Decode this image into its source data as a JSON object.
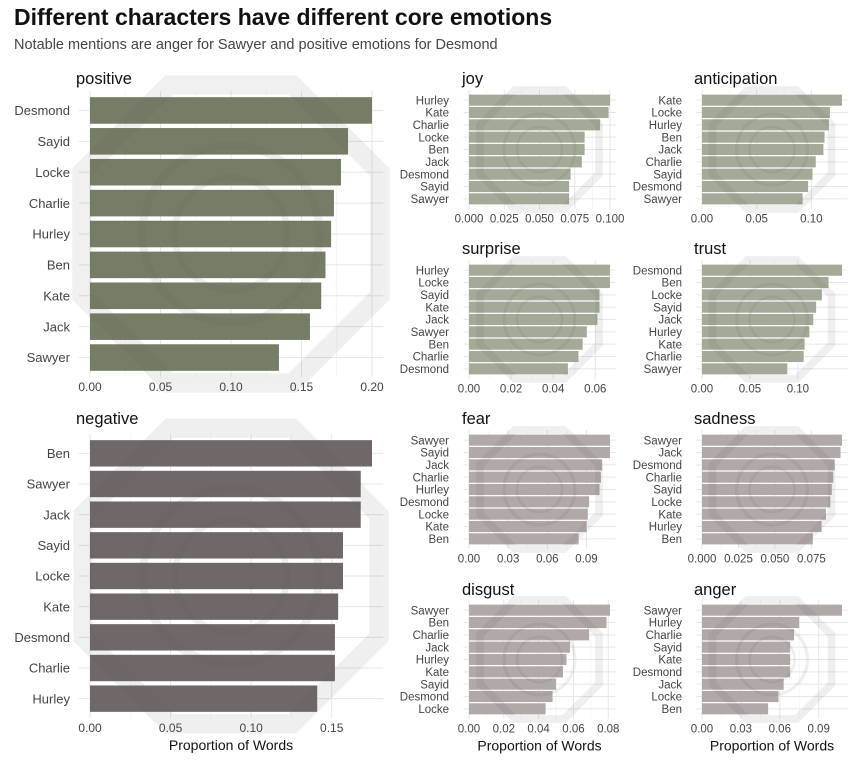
{
  "title": "Different characters have different core emotions",
  "subtitle": "Notable mentions are anger for Sawyer and positive emotions for Desmond",
  "colors": {
    "positive": "#767d67",
    "negative": "#706868",
    "positive_light": "#a4aa98",
    "negative_light": "#b1a8a8",
    "grid": "#e6e6e6",
    "text": "#444444"
  },
  "chart_data": [
    {
      "type": "bar",
      "orientation": "horizontal",
      "title": "positive",
      "xlabel": "",
      "categories": [
        "Desmond",
        "Sayid",
        "Locke",
        "Charlie",
        "Hurley",
        "Ben",
        "Kate",
        "Jack",
        "Sawyer"
      ],
      "values": [
        0.2,
        0.183,
        0.178,
        0.173,
        0.171,
        0.167,
        0.164,
        0.156,
        0.134
      ],
      "xlim": [
        0,
        0.2
      ],
      "ticks": [
        0,
        0.05,
        0.1,
        0.15,
        0.2
      ],
      "tick_labels": [
        "0.00",
        "0.05",
        "0.10",
        "0.15",
        "0.20"
      ],
      "color": "#767d67"
    },
    {
      "type": "bar",
      "orientation": "horizontal",
      "title": "negative",
      "xlabel": "Proportion of Words",
      "categories": [
        "Ben",
        "Sawyer",
        "Jack",
        "Sayid",
        "Locke",
        "Kate",
        "Desmond",
        "Charlie",
        "Hurley"
      ],
      "values": [
        0.175,
        0.168,
        0.168,
        0.157,
        0.157,
        0.154,
        0.152,
        0.152,
        0.141
      ],
      "xlim": [
        0,
        0.175
      ],
      "ticks": [
        0,
        0.05,
        0.1,
        0.15
      ],
      "tick_labels": [
        "0.00",
        "0.05",
        "0.10",
        "0.15"
      ],
      "color": "#706868"
    },
    {
      "type": "bar",
      "orientation": "horizontal",
      "title": "joy",
      "xlabel": "",
      "categories": [
        "Hurley",
        "Kate",
        "Charlie",
        "Locke",
        "Ben",
        "Jack",
        "Desmond",
        "Sayid",
        "Sawyer"
      ],
      "values": [
        0.1,
        0.099,
        0.093,
        0.082,
        0.082,
        0.08,
        0.072,
        0.071,
        0.071
      ],
      "xlim": [
        0,
        0.1
      ],
      "ticks": [
        0,
        0.025,
        0.05,
        0.075,
        0.1
      ],
      "tick_labels": [
        "0.000",
        "0.025",
        "0.050",
        "0.075",
        "0.100"
      ],
      "color": "#a4aa98"
    },
    {
      "type": "bar",
      "orientation": "horizontal",
      "title": "anticipation",
      "xlabel": "",
      "categories": [
        "Kate",
        "Locke",
        "Hurley",
        "Ben",
        "Jack",
        "Charlie",
        "Sayid",
        "Desmond",
        "Sawyer"
      ],
      "values": [
        0.128,
        0.117,
        0.116,
        0.112,
        0.111,
        0.104,
        0.101,
        0.097,
        0.092
      ],
      "xlim": [
        0,
        0.128
      ],
      "ticks": [
        0,
        0.05,
        0.1
      ],
      "tick_labels": [
        "0.00",
        "0.05",
        "0.10"
      ],
      "color": "#a4aa98"
    },
    {
      "type": "bar",
      "orientation": "horizontal",
      "title": "surprise",
      "xlabel": "",
      "categories": [
        "Hurley",
        "Locke",
        "Sayid",
        "Kate",
        "Jack",
        "Sawyer",
        "Ben",
        "Charlie",
        "Desmond"
      ],
      "values": [
        0.067,
        0.067,
        0.062,
        0.062,
        0.061,
        0.056,
        0.054,
        0.052,
        0.047
      ],
      "xlim": [
        0,
        0.067
      ],
      "ticks": [
        0,
        0.02,
        0.04,
        0.06
      ],
      "tick_labels": [
        "0.00",
        "0.02",
        "0.04",
        "0.06"
      ],
      "color": "#a4aa98"
    },
    {
      "type": "bar",
      "orientation": "horizontal",
      "title": "trust",
      "xlabel": "",
      "categories": [
        "Desmond",
        "Ben",
        "Locke",
        "Sayid",
        "Jack",
        "Hurley",
        "Kate",
        "Charlie",
        "Sawyer"
      ],
      "values": [
        0.146,
        0.132,
        0.125,
        0.119,
        0.116,
        0.112,
        0.107,
        0.106,
        0.089
      ],
      "xlim": [
        0,
        0.146
      ],
      "ticks": [
        0,
        0.05,
        0.1
      ],
      "tick_labels": [
        "0.00",
        "0.05",
        "0.10"
      ],
      "color": "#a4aa98"
    },
    {
      "type": "bar",
      "orientation": "horizontal",
      "title": "fear",
      "xlabel": "",
      "categories": [
        "Sawyer",
        "Sayid",
        "Jack",
        "Charlie",
        "Hurley",
        "Desmond",
        "Locke",
        "Kate",
        "Ben"
      ],
      "values": [
        0.108,
        0.108,
        0.102,
        0.101,
        0.1,
        0.092,
        0.091,
        0.09,
        0.084
      ],
      "xlim": [
        0,
        0.108
      ],
      "ticks": [
        0,
        0.03,
        0.06,
        0.09
      ],
      "tick_labels": [
        "0.00",
        "0.03",
        "0.06",
        "0.09"
      ],
      "color": "#b1a8a8"
    },
    {
      "type": "bar",
      "orientation": "horizontal",
      "title": "sadness",
      "xlabel": "",
      "categories": [
        "Sawyer",
        "Jack",
        "Desmond",
        "Charlie",
        "Sayid",
        "Locke",
        "Kate",
        "Hurley",
        "Ben"
      ],
      "values": [
        0.096,
        0.095,
        0.091,
        0.09,
        0.089,
        0.088,
        0.085,
        0.082,
        0.076
      ],
      "xlim": [
        0,
        0.096
      ],
      "ticks": [
        0,
        0.025,
        0.05,
        0.075
      ],
      "tick_labels": [
        "0.000",
        "0.025",
        "0.050",
        "0.075"
      ],
      "color": "#b1a8a8"
    },
    {
      "type": "bar",
      "orientation": "horizontal",
      "title": "disgust",
      "xlabel": "Proportion of Words",
      "categories": [
        "Sawyer",
        "Ben",
        "Charlie",
        "Jack",
        "Hurley",
        "Kate",
        "Sayid",
        "Desmond",
        "Locke"
      ],
      "values": [
        0.081,
        0.079,
        0.069,
        0.058,
        0.056,
        0.054,
        0.05,
        0.048,
        0.044
      ],
      "xlim": [
        0,
        0.081
      ],
      "ticks": [
        0,
        0.02,
        0.04,
        0.06,
        0.08
      ],
      "tick_labels": [
        "0.00",
        "0.02",
        "0.04",
        "0.06",
        "0.08"
      ],
      "color": "#b1a8a8"
    },
    {
      "type": "bar",
      "orientation": "horizontal",
      "title": "anger",
      "xlabel": "Proportion of Words",
      "categories": [
        "Sawyer",
        "Hurley",
        "Charlie",
        "Sayid",
        "Kate",
        "Desmond",
        "Jack",
        "Locke",
        "Ben"
      ],
      "values": [
        0.108,
        0.075,
        0.071,
        0.068,
        0.068,
        0.068,
        0.063,
        0.059,
        0.051
      ],
      "xlim": [
        0,
        0.108
      ],
      "ticks": [
        0,
        0.03,
        0.06,
        0.09
      ],
      "tick_labels": [
        "0.00",
        "0.03",
        "0.06",
        "0.09"
      ],
      "color": "#b1a8a8"
    }
  ]
}
